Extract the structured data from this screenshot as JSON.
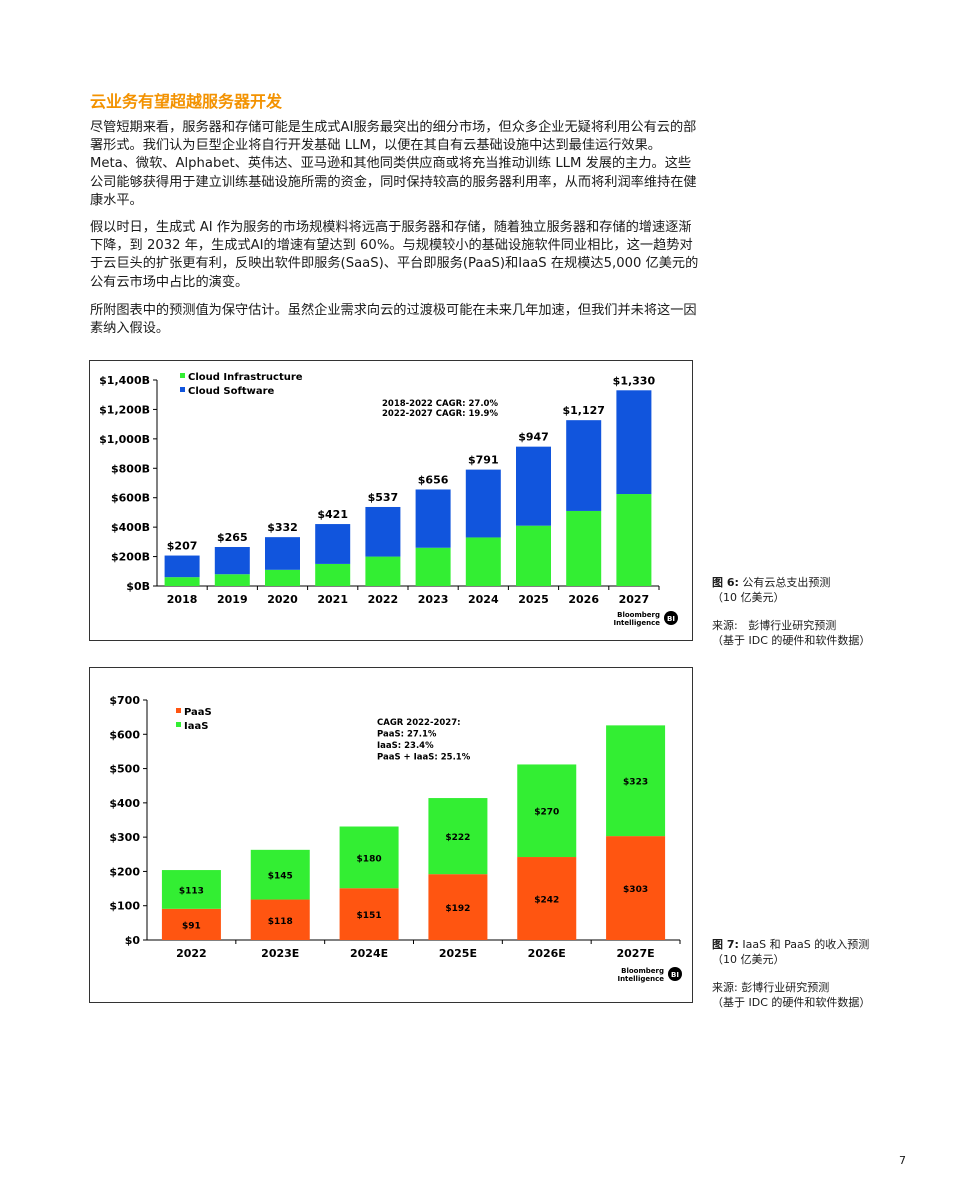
{
  "section_title": "云业务有望超越服务器开发",
  "paragraphs": [
    "尽管短期来看，服务器和存储可能是生成式AI服务最突出的细分市场，但众多企业无疑将利用公有云的部署形式。我们认为巨型企业将自行开发基础 LLM，以便在其自有云基础设施中达到最佳运行效果。Meta、微软、Alphabet、英伟达、亚马逊和其他同类供应商或将充当推动训练 LLM 发展的主力。这些公司能够获得用于建立训练基础设施所需的资金，同时保持较高的服务器利用率，从而将利润率维持在健康水平。",
    "假以时日，生成式 AI 作为服务的市场规模料将远高于服务器和存储，随着独立服务器和存储的增速逐渐下降，到 2032 年，生成式AI的增速有望达到 60%。与规模较小的基础设施软件同业相比，这一趋势对于云巨头的扩张更有利，反映出软件即服务(SaaS)、平台即服务(PaaS)和IaaS 在规模达5,000 亿美元的公有云市场中占比的演变。",
    "所附图表中的预测值为保守估计。虽然企业需求向云的过渡极可能在未来几年加速，但我们并未将这一因素纳入假设。"
  ],
  "figure6": {
    "caption_label": "图 6:",
    "caption_text": "公有云总支出预测",
    "caption_unit": "（10 亿美元）",
    "source_label": "来源:",
    "source_text": "彭博行业研究预测",
    "source_note": "（基于 IDC 的硬件和软件数据）"
  },
  "figure7": {
    "caption_label": "图 7:",
    "caption_text": "IaaS 和 PaaS 的收入预测",
    "caption_unit": "（10 亿美元）",
    "source_label": "来源:",
    "source_text": "彭博行业研究预测",
    "source_note": "（基于 IDC 的硬件和软件数据）"
  },
  "page_number": "7",
  "chart_data": [
    {
      "type": "bar",
      "stacked": true,
      "categories": [
        "2018",
        "2019",
        "2020",
        "2021",
        "2022",
        "2023",
        "2024",
        "2025",
        "2026",
        "2027"
      ],
      "series": [
        {
          "name": "Cloud Infrastructure",
          "color": "#33ee33",
          "values": [
            60,
            80,
            110,
            150,
            200,
            260,
            330,
            410,
            510,
            625
          ]
        },
        {
          "name": "Cloud Software",
          "color": "#1155dd",
          "values": [
            147,
            185,
            222,
            271,
            337,
            396,
            461,
            537,
            617,
            705
          ]
        }
      ],
      "totals": [
        "$207",
        "$265",
        "$332",
        "$421",
        "$537",
        "$656",
        "$791",
        "$947",
        "$1,127",
        "$1,330"
      ],
      "ylim": [
        0,
        1400
      ],
      "yticks": [
        0,
        200,
        400,
        600,
        800,
        1000,
        1200,
        1400
      ],
      "ytick_labels": [
        "$0B",
        "$200B",
        "$400B",
        "$600B",
        "$800B",
        "$1,000B",
        "$1,200B",
        "$1,400B"
      ],
      "legend_position": "top-left",
      "annotations": [
        "2018-2022 CAGR: 27.0%",
        "2022-2027 CAGR: 19.9%"
      ],
      "brand_lines": [
        "Bloomberg",
        "Intelligence"
      ],
      "brand_mark": "BI"
    },
    {
      "type": "bar",
      "stacked": true,
      "categories": [
        "2022",
        "2023E",
        "2024E",
        "2025E",
        "2026E",
        "2027E"
      ],
      "series": [
        {
          "name": "PaaS",
          "color": "#ff5511",
          "values": [
            91,
            118,
            151,
            192,
            242,
            303
          ],
          "labels": [
            "$91",
            "$118",
            "$151",
            "$192",
            "$242",
            "$303"
          ]
        },
        {
          "name": "IaaS",
          "color": "#33ee33",
          "values": [
            113,
            145,
            180,
            222,
            270,
            323
          ],
          "labels": [
            "$113",
            "$145",
            "$180",
            "$222",
            "$270",
            "$323"
          ]
        }
      ],
      "ylim": [
        0,
        700
      ],
      "yticks": [
        0,
        100,
        200,
        300,
        400,
        500,
        600,
        700
      ],
      "ytick_labels": [
        "$0",
        "$100",
        "$200",
        "$300",
        "$400",
        "$500",
        "$600",
        "$700"
      ],
      "legend_position": "top-left",
      "annotations": [
        "CAGR 2022-2027:",
        "PaaS: 27.1%",
        "IaaS: 23.4%",
        "PaaS + IaaS: 25.1%"
      ],
      "brand_lines": [
        "Bloomberg",
        "Intelligence"
      ],
      "brand_mark": "BI"
    }
  ]
}
